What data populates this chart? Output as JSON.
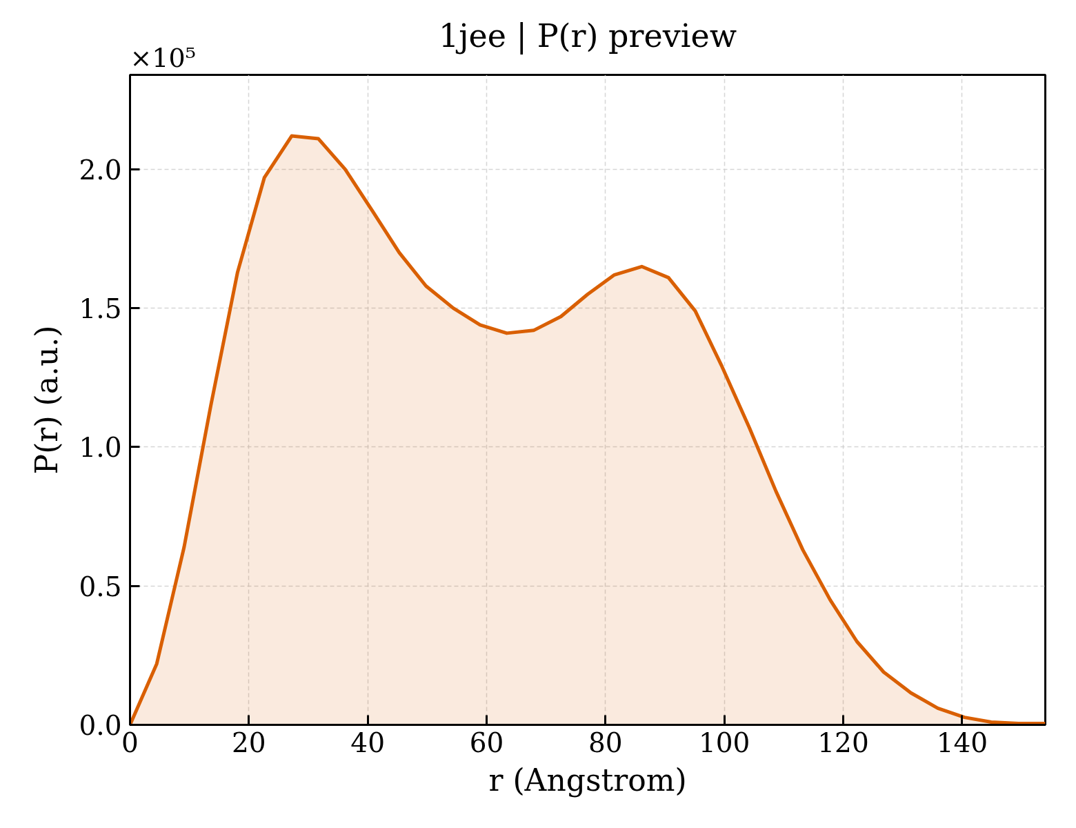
{
  "chart_data": {
    "type": "area",
    "title": "1jee | P(r) preview",
    "xlabel": "r (Angstrom)",
    "ylabel": "P(r) (a.u.)",
    "annotations": [
      "×10⁵"
    ],
    "x": [
      0,
      4.5,
      9.1,
      13.6,
      18.1,
      22.6,
      27.2,
      31.7,
      36.2,
      40.8,
      45.3,
      49.8,
      54.4,
      58.9,
      63.4,
      67.9,
      72.5,
      77.0,
      81.5,
      86.1,
      90.6,
      95.1,
      99.6,
      104.2,
      108.7,
      113.2,
      117.8,
      122.3,
      126.8,
      131.4,
      135.9,
      140.4,
      144.9,
      149.5,
      154.0
    ],
    "series": [
      {
        "color": "#d95f02",
        "values": [
          0,
          0.22,
          0.64,
          1.15,
          1.63,
          1.97,
          2.12,
          2.11,
          2.0,
          1.85,
          1.7,
          1.58,
          1.5,
          1.44,
          1.41,
          1.42,
          1.47,
          1.55,
          1.62,
          1.65,
          1.61,
          1.49,
          1.29,
          1.07,
          0.84,
          0.63,
          0.45,
          0.3,
          0.19,
          0.115,
          0.06,
          0.027,
          0.01,
          0.005,
          0.005
        ]
      }
    ],
    "xlim": [
      0,
      154
    ],
    "ylim": [
      0,
      2.34
    ],
    "xticks": [
      0,
      20,
      40,
      60,
      80,
      100,
      120,
      140
    ],
    "yticks": [
      {
        "value": 0,
        "label": "0.0"
      },
      {
        "value": 0.5,
        "label": "0.5"
      },
      {
        "value": 1.0,
        "label": "1.0"
      },
      {
        "value": 1.5,
        "label": "1.5"
      },
      {
        "value": 2.0,
        "label": "2.0"
      }
    ],
    "grid": true
  }
}
